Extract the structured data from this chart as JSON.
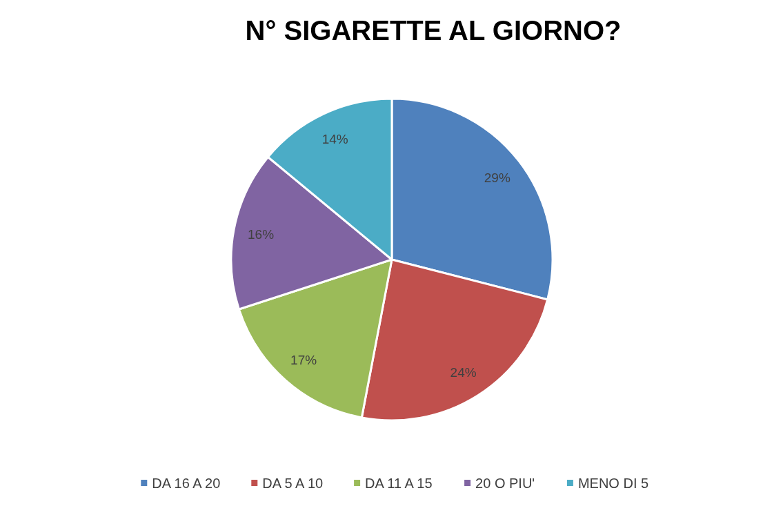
{
  "chart_data": {
    "type": "pie",
    "title": "N° SIGARETTE AL GIORNO?",
    "categories": [
      "DA 16 A 20",
      "DA 5 A 10",
      "DA 11 A 15",
      "20 O PIU'",
      "MENO DI 5"
    ],
    "values": [
      29,
      24,
      17,
      16,
      14
    ],
    "colors": [
      "#4f81bd",
      "#c0504d",
      "#9bbb59",
      "#8064a2",
      "#4bacc6"
    ],
    "value_labels": [
      "29%",
      "24%",
      "17%",
      "16%",
      "14%"
    ],
    "legend": "bottom"
  }
}
